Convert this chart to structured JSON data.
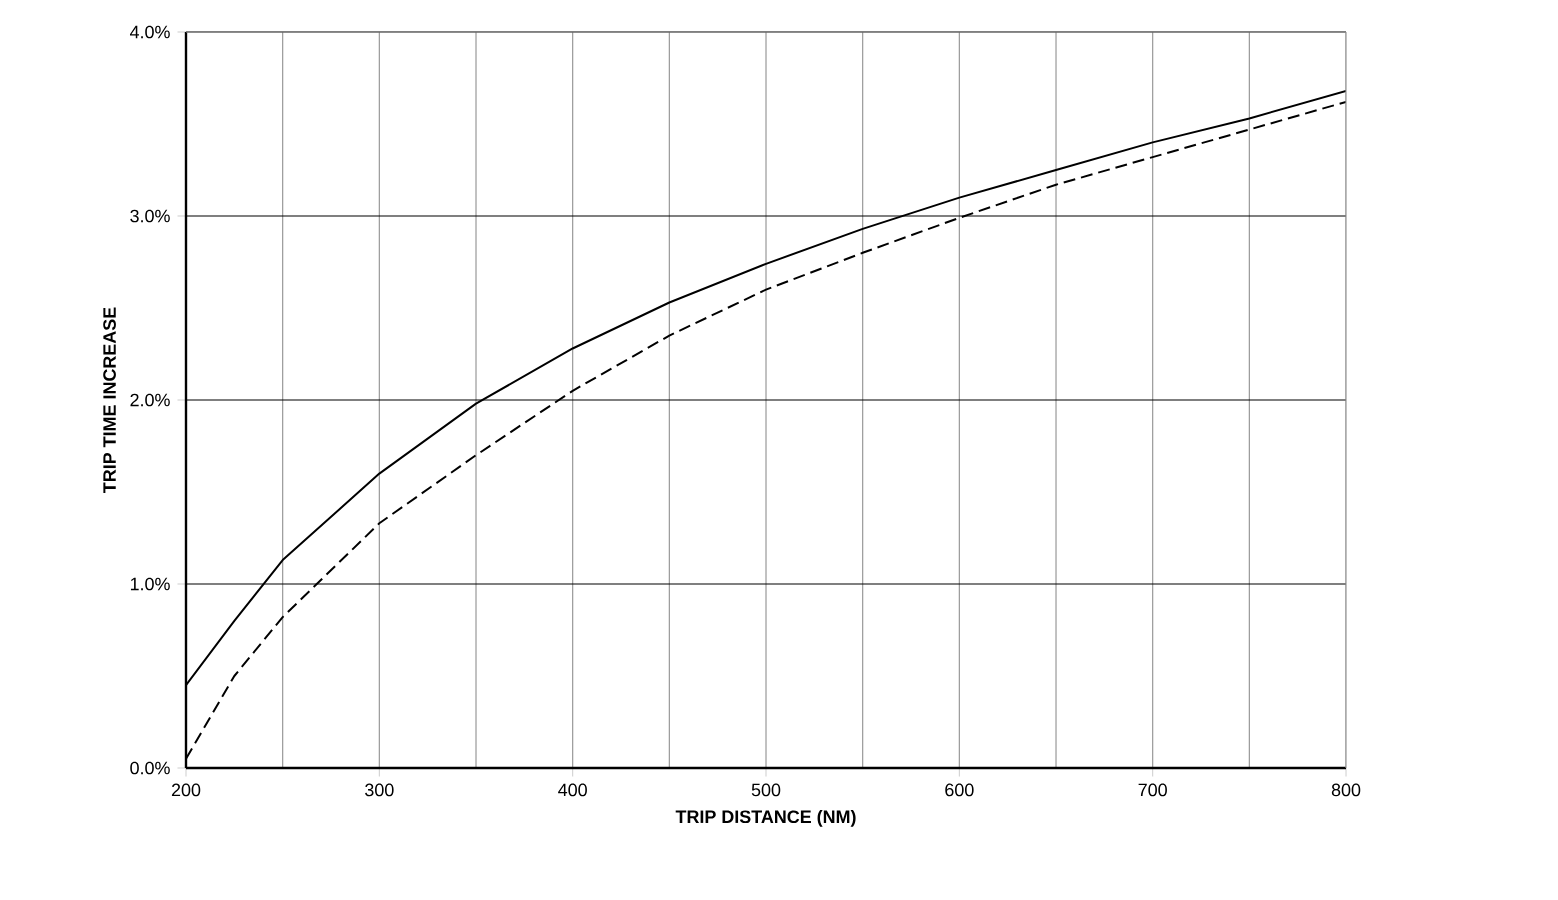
{
  "chart_data": {
    "type": "line",
    "xlabel": "TRIP DISTANCE (NM)",
    "ylabel": "TRIP TIME INCREASE",
    "x": [
      200,
      225,
      250,
      300,
      350,
      400,
      450,
      500,
      550,
      600,
      650,
      700,
      750,
      800
    ],
    "series": [
      {
        "color": "#000000",
        "line_style": "solid",
        "values": [
          0.45,
          0.8,
          1.13,
          1.6,
          1.98,
          2.28,
          2.53,
          2.74,
          2.93,
          3.1,
          3.25,
          3.4,
          3.53,
          3.68
        ]
      },
      {
        "color": "#000000",
        "line_style": "dashed",
        "values": [
          0.05,
          0.5,
          0.82,
          1.33,
          1.7,
          2.05,
          2.35,
          2.6,
          2.8,
          2.99,
          3.17,
          3.32,
          3.47,
          3.62
        ]
      }
    ],
    "xlim": [
      200,
      800
    ],
    "ylim": [
      0,
      4
    ],
    "xticks": [
      200,
      300,
      400,
      500,
      600,
      700,
      800
    ],
    "yticks": [
      {
        "value": 0,
        "label": "0.0%"
      },
      {
        "value": 1,
        "label": "1.0%"
      },
      {
        "value": 2,
        "label": "2.0%"
      },
      {
        "value": 3,
        "label": "3.0%"
      },
      {
        "value": 4,
        "label": "4.0%"
      }
    ],
    "grid": true,
    "marker": "none"
  }
}
